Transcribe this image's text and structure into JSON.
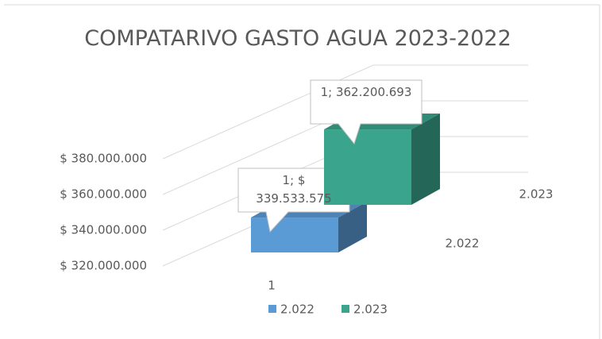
{
  "chart_data": {
    "type": "bar3d",
    "title": "COMPATARIVO GASTO AGUA 2023-2022",
    "categories": [
      "1"
    ],
    "series": [
      {
        "name": "2.022",
        "color": "#5b9bd5",
        "values": [
          339533575
        ],
        "value_labels": [
          "1; $ 339.533.575"
        ]
      },
      {
        "name": "2.023",
        "color": "#3aa58c",
        "values": [
          362200693
        ],
        "value_labels": [
          "1; 362.200.693"
        ]
      }
    ],
    "ylim": [
      320000000,
      380000000
    ],
    "yticks": [
      {
        "value": 320000000,
        "label": "$ 320.000.000"
      },
      {
        "value": 340000000,
        "label": "$ 340.000.000"
      },
      {
        "value": 360000000,
        "label": "$ 360.000.000"
      },
      {
        "value": 380000000,
        "label": "$ 380.000.000"
      }
    ],
    "grid": true,
    "legend": "bottom"
  }
}
